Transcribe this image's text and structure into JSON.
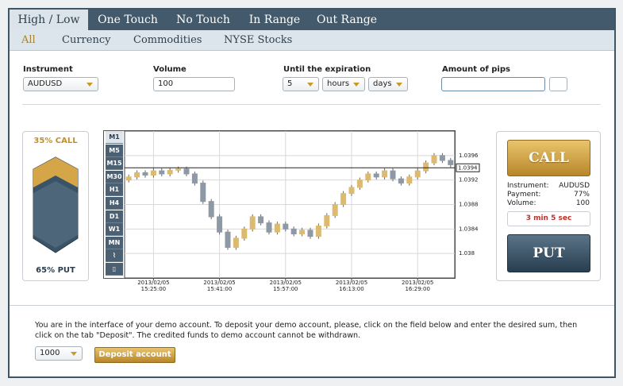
{
  "tabs": [
    "High / Low",
    "One Touch",
    "No Touch",
    "In Range",
    "Out Range"
  ],
  "subtabs": [
    "All",
    "Currency",
    "Commodities",
    "NYSE Stocks"
  ],
  "form": {
    "instrument_label": "Instrument",
    "instrument": "AUDUSD",
    "volume_label": "Volume",
    "volume": "100",
    "expiration_label": "Until the expiration",
    "expiration_value": "5",
    "expiration_unit": "hours",
    "expiration_unit2": "days",
    "pips_label": "Amount of pips"
  },
  "sentiment": {
    "call": "35% CALL",
    "put": "65% PUT"
  },
  "timeframes": [
    "M1",
    "M5",
    "M15",
    "M30",
    "H1",
    "H4",
    "D1",
    "W1",
    "MN"
  ],
  "trade": {
    "call_button": "CALL",
    "put_button": "PUT",
    "info": [
      [
        "Instrument:",
        "AUDUSD"
      ],
      [
        "Payment:",
        "77%"
      ],
      [
        "Volume:",
        "100"
      ]
    ],
    "timer": "3 min 5 sec"
  },
  "footer": {
    "text": "You are in the interface of your demo account. To deposit your demo account, please, click on the field below and enter the desired sum, then click on the tab \"Deposit\". The credited funds to demo account cannot be withdrawn.",
    "amount": "1000",
    "button": "Deposit account"
  },
  "chart_data": {
    "type": "candlestick",
    "up_color": "#dcbb70",
    "down_color": "#8e99a5",
    "grid": true,
    "current_price": 1.0394,
    "ylim": [
      1.0376,
      1.04
    ],
    "yticks": [
      1.038,
      1.0384,
      1.0388,
      1.0392,
      1.0396
    ],
    "xlim": [
      -0.5,
      39.5
    ],
    "xticks": [
      {
        "value": 3,
        "label": "2013/02/05 15:25:00"
      },
      {
        "value": 11,
        "label": "2013/02/05 15:41:00"
      },
      {
        "value": 19,
        "label": "2013/02/05 15:57:00"
      },
      {
        "value": 27,
        "label": "2013/02/05 16:13:00"
      },
      {
        "value": 35,
        "label": "2013/02/05 16:29:00"
      }
    ],
    "open": [
      1.0392,
      1.03925,
      1.03932,
      1.03928,
      1.03935,
      1.0393,
      1.03936,
      1.03938,
      1.0393,
      1.03915,
      1.03885,
      1.0386,
      1.03835,
      1.0381,
      1.03825,
      1.0384,
      1.0386,
      1.0385,
      1.03835,
      1.03848,
      1.0384,
      1.03832,
      1.03838,
      1.03828,
      1.03845,
      1.03862,
      1.0388,
      1.03898,
      1.03908,
      1.0392,
      1.0393,
      1.03925,
      1.03935,
      1.03922,
      1.03915,
      1.03925,
      1.03935,
      1.03948,
      1.0396,
      1.03952
    ],
    "high": [
      1.03929,
      1.03936,
      1.03936,
      1.03939,
      1.03939,
      1.0394,
      1.03942,
      1.03942,
      1.03934,
      1.03919,
      1.03889,
      1.03864,
      1.03839,
      1.03829,
      1.03844,
      1.03864,
      1.03864,
      1.03854,
      1.03852,
      1.03852,
      1.03844,
      1.03842,
      1.03842,
      1.03849,
      1.03866,
      1.03884,
      1.03902,
      1.03912,
      1.03924,
      1.03934,
      1.03934,
      1.03939,
      1.03939,
      1.03926,
      1.03929,
      1.03939,
      1.03952,
      1.03964,
      1.03964,
      1.03956
    ],
    "low": [
      1.03916,
      1.03921,
      1.03924,
      1.03924,
      1.03926,
      1.03926,
      1.03932,
      1.03926,
      1.03911,
      1.03881,
      1.03856,
      1.03831,
      1.03806,
      1.03806,
      1.03821,
      1.03836,
      1.03846,
      1.03831,
      1.03831,
      1.03836,
      1.03828,
      1.03828,
      1.03824,
      1.03824,
      1.03841,
      1.03858,
      1.03876,
      1.03894,
      1.03904,
      1.03916,
      1.03921,
      1.03921,
      1.03918,
      1.03911,
      1.03911,
      1.03921,
      1.03931,
      1.03944,
      1.03948,
      1.03941
    ],
    "close": [
      1.03925,
      1.03932,
      1.03928,
      1.03935,
      1.0393,
      1.03936,
      1.03938,
      1.0393,
      1.03915,
      1.03885,
      1.0386,
      1.03835,
      1.0381,
      1.03825,
      1.0384,
      1.0386,
      1.0385,
      1.03835,
      1.03848,
      1.0384,
      1.03832,
      1.03838,
      1.03828,
      1.03845,
      1.03862,
      1.0388,
      1.03898,
      1.03908,
      1.0392,
      1.0393,
      1.03925,
      1.03935,
      1.03922,
      1.03915,
      1.03925,
      1.03935,
      1.03948,
      1.0396,
      1.03952,
      1.03945
    ]
  }
}
